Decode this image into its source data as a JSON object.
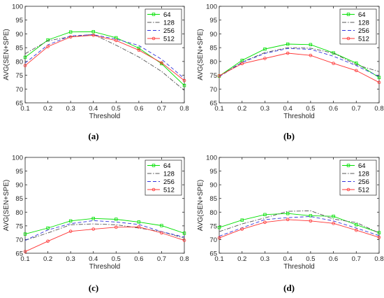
{
  "chart_data": [
    {
      "type": "line",
      "caption": "(a)",
      "xlabel": "Threshold",
      "ylabel": "AVG(SEN+SPE)",
      "xlim": [
        0.1,
        0.8
      ],
      "ylim": [
        65,
        100
      ],
      "xticks": [
        "0.1",
        "0.2",
        "0.3",
        "0.4",
        "0.5",
        "0.6",
        "0.7",
        "0.8"
      ],
      "yticks": [
        "65",
        "70",
        "75",
        "80",
        "85",
        "90",
        "95",
        "100"
      ],
      "legend_position": "top-right",
      "x": [
        0.1,
        0.2,
        0.3,
        0.4,
        0.5,
        0.6,
        0.7,
        0.8
      ],
      "series": [
        {
          "name": "64",
          "color": "#00e000",
          "dash": "solid",
          "marker": "square",
          "values": [
            81.5,
            87.8,
            90.7,
            90.8,
            88.6,
            84.8,
            79.2,
            71.3
          ]
        },
        {
          "name": "128",
          "color": "#555555",
          "dash": "dashdot",
          "marker": "none",
          "values": [
            82.8,
            87.5,
            89.0,
            89.8,
            85.9,
            81.6,
            76.4,
            69.5
          ]
        },
        {
          "name": "256",
          "color": "#3333dd",
          "dash": "dashed",
          "marker": "none",
          "values": [
            79.4,
            86.0,
            89.3,
            89.7,
            88.1,
            85.8,
            80.8,
            73.8
          ]
        },
        {
          "name": "512",
          "color": "#ff3333",
          "dash": "solid",
          "marker": "circle",
          "values": [
            78.5,
            85.4,
            88.9,
            89.5,
            87.6,
            84.1,
            79.5,
            73.1
          ]
        }
      ]
    },
    {
      "type": "line",
      "caption": "(b)",
      "xlabel": "Threshold",
      "ylabel": "AVG(SEN+SPE)",
      "xlim": [
        0.1,
        0.8
      ],
      "ylim": [
        65,
        100
      ],
      "xticks": [
        "0.1",
        "0.2",
        "0.3",
        "0.4",
        "0.5",
        "0.6",
        "0.7",
        "0.8"
      ],
      "yticks": [
        "65",
        "70",
        "75",
        "80",
        "85",
        "90",
        "95",
        "100"
      ],
      "legend_position": "top-right",
      "x": [
        0.1,
        0.2,
        0.3,
        0.4,
        0.5,
        0.6,
        0.7,
        0.8
      ],
      "series": [
        {
          "name": "64",
          "color": "#00e000",
          "dash": "solid",
          "marker": "square",
          "values": [
            74.7,
            80.4,
            84.5,
            86.3,
            86.1,
            83.1,
            79.4,
            74.2
          ]
        },
        {
          "name": "128",
          "color": "#555555",
          "dash": "dashdot",
          "marker": "none",
          "values": [
            74.6,
            79.8,
            83.2,
            85.0,
            84.8,
            83.0,
            78.8,
            76.3
          ]
        },
        {
          "name": "256",
          "color": "#3333dd",
          "dash": "dashed",
          "marker": "none",
          "values": [
            74.5,
            79.6,
            82.9,
            84.7,
            84.4,
            81.9,
            78.5,
            74.5
          ]
        },
        {
          "name": "512",
          "color": "#ff3333",
          "dash": "solid",
          "marker": "circle",
          "values": [
            74.8,
            79.2,
            81.1,
            83.0,
            82.2,
            79.3,
            76.7,
            72.4
          ]
        }
      ]
    },
    {
      "type": "line",
      "caption": "(c)",
      "xlabel": "Threshold",
      "ylabel": "AVG(SEN+SPE)",
      "xlim": [
        0.1,
        0.8
      ],
      "ylim": [
        65,
        100
      ],
      "xticks": [
        "0.1",
        "0.2",
        "0.3",
        "0.4",
        "0.5",
        "0.6",
        "0.7",
        "0.8"
      ],
      "yticks": [
        "65",
        "70",
        "75",
        "80",
        "85",
        "90",
        "95",
        "100"
      ],
      "legend_position": "top-right",
      "x": [
        0.1,
        0.2,
        0.3,
        0.4,
        0.5,
        0.6,
        0.7,
        0.8
      ],
      "series": [
        {
          "name": "64",
          "color": "#00e000",
          "dash": "solid",
          "marker": "square",
          "values": [
            72.0,
            74.2,
            76.8,
            77.7,
            77.4,
            76.4,
            75.1,
            72.3
          ]
        },
        {
          "name": "128",
          "color": "#555555",
          "dash": "dashdot",
          "marker": "none",
          "values": [
            69.7,
            72.4,
            75.4,
            75.7,
            75.4,
            74.2,
            72.9,
            70.5
          ]
        },
        {
          "name": "256",
          "color": "#3333dd",
          "dash": "dashed",
          "marker": "none",
          "values": [
            69.7,
            73.5,
            75.8,
            76.9,
            76.4,
            75.5,
            72.9,
            70.9
          ]
        },
        {
          "name": "512",
          "color": "#ff3333",
          "dash": "solid",
          "marker": "circle",
          "values": [
            65.6,
            69.4,
            73.0,
            73.8,
            74.5,
            74.6,
            72.4,
            69.7
          ]
        }
      ]
    },
    {
      "type": "line",
      "caption": "(d)",
      "xlabel": "Threshold",
      "ylabel": "AVG(SEN+SPE)",
      "xlim": [
        0.1,
        0.8
      ],
      "ylim": [
        65,
        100
      ],
      "xticks": [
        "0.1",
        "0.2",
        "0.3",
        "0.4",
        "0.5",
        "0.6",
        "0.7",
        "0.8"
      ],
      "yticks": [
        "65",
        "70",
        "75",
        "80",
        "85",
        "90",
        "95",
        "100"
      ],
      "legend_position": "top-right",
      "x": [
        0.1,
        0.2,
        0.3,
        0.4,
        0.5,
        0.6,
        0.7,
        0.8
      ],
      "series": [
        {
          "name": "64",
          "color": "#00e000",
          "dash": "solid",
          "marker": "square",
          "values": [
            74.4,
            77.1,
            79.1,
            79.5,
            78.7,
            78.5,
            75.4,
            72.5
          ]
        },
        {
          "name": "128",
          "color": "#555555",
          "dash": "dashdot",
          "marker": "none",
          "values": [
            72.9,
            75.7,
            77.9,
            80.3,
            80.5,
            77.5,
            76.2,
            72.4
          ]
        },
        {
          "name": "256",
          "color": "#3333dd",
          "dash": "dashed",
          "marker": "none",
          "values": [
            71.2,
            74.3,
            77.3,
            78.0,
            78.4,
            76.8,
            74.2,
            71.4
          ]
        },
        {
          "name": "512",
          "color": "#ff3333",
          "dash": "solid",
          "marker": "circle",
          "values": [
            70.6,
            73.8,
            76.3,
            77.3,
            76.8,
            75.9,
            73.4,
            70.8
          ]
        }
      ]
    }
  ]
}
